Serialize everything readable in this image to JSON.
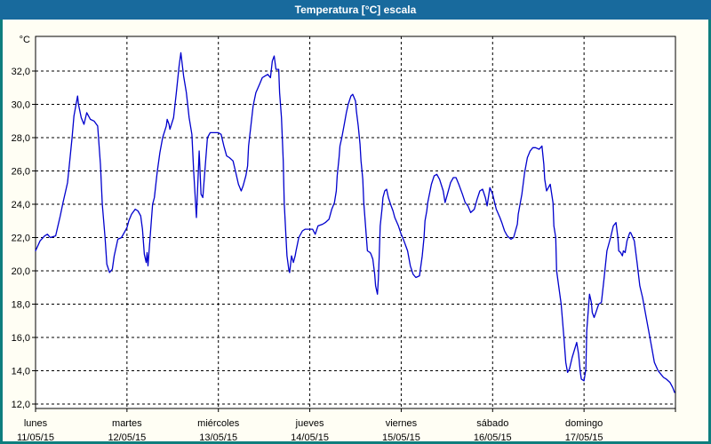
{
  "window": {
    "title": "Temperatura [°C] escala"
  },
  "colors": {
    "title_bar": "#186a9d",
    "window_border": "#0e7e7e",
    "panel_background": "#fffef4",
    "plot_background": "#ffffff",
    "grid": "#000000",
    "text": "#000000",
    "line": "#0000cd"
  },
  "chart_data": {
    "type": "line",
    "title": "Temperatura [°C] escala",
    "legend": "none",
    "grid": {
      "style": "dashed",
      "h_step_degC": 2,
      "v_step_days": 1
    },
    "y_axis": {
      "unit": "°C",
      "min": 12,
      "max": 34,
      "ticks": [
        32,
        30,
        28,
        26,
        24,
        22,
        20,
        18,
        16,
        14,
        12
      ],
      "tick_labels": [
        "32,0",
        "30,0",
        "28,0",
        "26,0",
        "24,0",
        "22,0",
        "20,0",
        "18,0",
        "16,0",
        "14,0",
        "12,0"
      ]
    },
    "x_axis": {
      "range_days": 7,
      "day_labels": [
        {
          "name": "lunes",
          "date": "11/05/15"
        },
        {
          "name": "martes",
          "date": "12/05/15"
        },
        {
          "name": "miércoles",
          "date": "13/05/15"
        },
        {
          "name": "jueves",
          "date": "14/05/15"
        },
        {
          "name": "viernes",
          "date": "15/05/15"
        },
        {
          "name": "sábado",
          "date": "16/05/15"
        },
        {
          "name": "domingo",
          "date": "17/05/15"
        }
      ]
    },
    "series": [
      {
        "name": "Temperatura [°C]",
        "color": "#0000cd",
        "points": [
          [
            0.0,
            21.2
          ],
          [
            0.05,
            21.8
          ],
          [
            0.1,
            22.1
          ],
          [
            0.13,
            22.2
          ],
          [
            0.16,
            22.0
          ],
          [
            0.22,
            22.1
          ],
          [
            0.27,
            23.3
          ],
          [
            0.3,
            24.1
          ],
          [
            0.33,
            24.8
          ],
          [
            0.35,
            25.3
          ],
          [
            0.37,
            26.4
          ],
          [
            0.4,
            28.0
          ],
          [
            0.42,
            29.3
          ],
          [
            0.46,
            30.5
          ],
          [
            0.47,
            30.0
          ],
          [
            0.5,
            29.2
          ],
          [
            0.53,
            28.8
          ],
          [
            0.56,
            29.5
          ],
          [
            0.6,
            29.1
          ],
          [
            0.64,
            29.0
          ],
          [
            0.68,
            28.7
          ],
          [
            0.71,
            26.4
          ],
          [
            0.73,
            24.0
          ],
          [
            0.76,
            22.0
          ],
          [
            0.78,
            20.4
          ],
          [
            0.81,
            19.9
          ],
          [
            0.84,
            20.1
          ],
          [
            0.86,
            20.9
          ],
          [
            0.9,
            21.9
          ],
          [
            0.94,
            22.0
          ],
          [
            0.97,
            22.3
          ],
          [
            1.0,
            22.6
          ],
          [
            1.02,
            23.0
          ],
          [
            1.05,
            23.4
          ],
          [
            1.09,
            23.7
          ],
          [
            1.12,
            23.6
          ],
          [
            1.15,
            23.3
          ],
          [
            1.17,
            22.5
          ],
          [
            1.19,
            21.0
          ],
          [
            1.21,
            20.5
          ],
          [
            1.22,
            21.1
          ],
          [
            1.23,
            20.3
          ],
          [
            1.25,
            21.8
          ],
          [
            1.28,
            24.0
          ],
          [
            1.3,
            24.4
          ],
          [
            1.33,
            25.9
          ],
          [
            1.36,
            27.1
          ],
          [
            1.39,
            28.0
          ],
          [
            1.43,
            28.7
          ],
          [
            1.44,
            29.1
          ],
          [
            1.46,
            28.8
          ],
          [
            1.47,
            28.5
          ],
          [
            1.51,
            29.2
          ],
          [
            1.54,
            30.7
          ],
          [
            1.57,
            32.3
          ],
          [
            1.59,
            33.1
          ],
          [
            1.62,
            31.7
          ],
          [
            1.65,
            30.7
          ],
          [
            1.68,
            29.2
          ],
          [
            1.71,
            28.2
          ],
          [
            1.73,
            26.0
          ],
          [
            1.76,
            23.2
          ],
          [
            1.79,
            27.2
          ],
          [
            1.81,
            24.6
          ],
          [
            1.83,
            24.4
          ],
          [
            1.88,
            28.0
          ],
          [
            1.91,
            28.3
          ],
          [
            1.94,
            28.3
          ],
          [
            2.0,
            28.3
          ],
          [
            2.03,
            28.2
          ],
          [
            2.06,
            27.5
          ],
          [
            2.09,
            26.9
          ],
          [
            2.12,
            26.8
          ],
          [
            2.16,
            26.6
          ],
          [
            2.19,
            25.9
          ],
          [
            2.22,
            25.2
          ],
          [
            2.25,
            24.8
          ],
          [
            2.27,
            25.1
          ],
          [
            2.3,
            25.7
          ],
          [
            2.32,
            26.3
          ],
          [
            2.33,
            27.5
          ],
          [
            2.36,
            28.9
          ],
          [
            2.38,
            29.9
          ],
          [
            2.41,
            30.7
          ],
          [
            2.45,
            31.2
          ],
          [
            2.48,
            31.6
          ],
          [
            2.51,
            31.7
          ],
          [
            2.54,
            31.8
          ],
          [
            2.57,
            31.6
          ],
          [
            2.59,
            32.6
          ],
          [
            2.61,
            32.9
          ],
          [
            2.63,
            32.1
          ],
          [
            2.66,
            32.1
          ],
          [
            2.67,
            30.7
          ],
          [
            2.69,
            29.2
          ],
          [
            2.71,
            26.6
          ],
          [
            2.72,
            24.1
          ],
          [
            2.74,
            22.0
          ],
          [
            2.75,
            20.9
          ],
          [
            2.77,
            20.1
          ],
          [
            2.78,
            19.9
          ],
          [
            2.8,
            20.9
          ],
          [
            2.82,
            20.5
          ],
          [
            2.84,
            20.9
          ],
          [
            2.85,
            21.2
          ],
          [
            2.88,
            22.0
          ],
          [
            2.92,
            22.4
          ],
          [
            2.95,
            22.5
          ],
          [
            3.0,
            22.5
          ],
          [
            3.03,
            22.5
          ],
          [
            3.06,
            22.2
          ],
          [
            3.09,
            22.7
          ],
          [
            3.14,
            22.8
          ],
          [
            3.17,
            22.9
          ],
          [
            3.21,
            23.1
          ],
          [
            3.24,
            23.7
          ],
          [
            3.27,
            24.1
          ],
          [
            3.29,
            24.8
          ],
          [
            3.3,
            25.7
          ],
          [
            3.32,
            26.8
          ],
          [
            3.33,
            27.5
          ],
          [
            3.35,
            28.0
          ],
          [
            3.38,
            28.9
          ],
          [
            3.4,
            29.5
          ],
          [
            3.42,
            30.0
          ],
          [
            3.45,
            30.5
          ],
          [
            3.47,
            30.6
          ],
          [
            3.5,
            30.2
          ],
          [
            3.51,
            29.6
          ],
          [
            3.53,
            28.7
          ],
          [
            3.55,
            27.6
          ],
          [
            3.56,
            26.6
          ],
          [
            3.58,
            25.5
          ],
          [
            3.59,
            24.1
          ],
          [
            3.61,
            22.7
          ],
          [
            3.63,
            21.2
          ],
          [
            3.66,
            21.1
          ],
          [
            3.67,
            21.0
          ],
          [
            3.69,
            20.7
          ],
          [
            3.71,
            19.8
          ],
          [
            3.72,
            19.1
          ],
          [
            3.74,
            18.6
          ],
          [
            3.75,
            19.5
          ],
          [
            3.76,
            20.9
          ],
          [
            3.77,
            22.7
          ],
          [
            3.79,
            23.7
          ],
          [
            3.8,
            24.4
          ],
          [
            3.82,
            24.8
          ],
          [
            3.84,
            24.9
          ],
          [
            3.86,
            24.4
          ],
          [
            3.89,
            23.9
          ],
          [
            3.91,
            23.6
          ],
          [
            3.93,
            23.2
          ],
          [
            3.97,
            22.7
          ],
          [
            4.0,
            22.2
          ],
          [
            4.03,
            21.8
          ],
          [
            4.07,
            21.2
          ],
          [
            4.1,
            20.3
          ],
          [
            4.13,
            19.8
          ],
          [
            4.16,
            19.6
          ],
          [
            4.2,
            19.7
          ],
          [
            4.23,
            20.9
          ],
          [
            4.25,
            22.0
          ],
          [
            4.26,
            23.0
          ],
          [
            4.28,
            23.6
          ],
          [
            4.29,
            24.1
          ],
          [
            4.33,
            25.2
          ],
          [
            4.36,
            25.7
          ],
          [
            4.39,
            25.8
          ],
          [
            4.42,
            25.5
          ],
          [
            4.46,
            24.8
          ],
          [
            4.48,
            24.1
          ],
          [
            4.5,
            24.5
          ],
          [
            4.54,
            25.3
          ],
          [
            4.57,
            25.6
          ],
          [
            4.6,
            25.6
          ],
          [
            4.63,
            25.2
          ],
          [
            4.67,
            24.6
          ],
          [
            4.7,
            24.1
          ],
          [
            4.73,
            23.9
          ],
          [
            4.76,
            23.5
          ],
          [
            4.8,
            23.7
          ],
          [
            4.83,
            24.3
          ],
          [
            4.86,
            24.8
          ],
          [
            4.89,
            24.9
          ],
          [
            4.92,
            24.4
          ],
          [
            4.94,
            23.9
          ],
          [
            4.97,
            25.0
          ],
          [
            5.0,
            24.6
          ],
          [
            5.04,
            23.7
          ],
          [
            5.08,
            23.2
          ],
          [
            5.1,
            22.9
          ],
          [
            5.13,
            22.4
          ],
          [
            5.16,
            22.1
          ],
          [
            5.2,
            21.9
          ],
          [
            5.23,
            22.0
          ],
          [
            5.27,
            22.8
          ],
          [
            5.28,
            23.4
          ],
          [
            5.32,
            24.6
          ],
          [
            5.35,
            25.9
          ],
          [
            5.38,
            26.8
          ],
          [
            5.41,
            27.2
          ],
          [
            5.44,
            27.4
          ],
          [
            5.47,
            27.4
          ],
          [
            5.51,
            27.3
          ],
          [
            5.54,
            27.5
          ],
          [
            5.56,
            26.4
          ],
          [
            5.57,
            25.5
          ],
          [
            5.59,
            24.8
          ],
          [
            5.61,
            25.0
          ],
          [
            5.63,
            25.2
          ],
          [
            5.66,
            24.1
          ],
          [
            5.67,
            22.7
          ],
          [
            5.69,
            22.0
          ],
          [
            5.7,
            20.0
          ],
          [
            5.75,
            18.0
          ],
          [
            5.78,
            16.0
          ],
          [
            5.8,
            14.5
          ],
          [
            5.82,
            13.9
          ],
          [
            5.84,
            14.1
          ],
          [
            5.87,
            14.8
          ],
          [
            5.92,
            15.7
          ],
          [
            5.94,
            15.0
          ],
          [
            5.96,
            13.9
          ],
          [
            5.97,
            13.5
          ],
          [
            6.0,
            13.4
          ],
          [
            6.02,
            14.1
          ],
          [
            6.03,
            16.4
          ],
          [
            6.05,
            17.9
          ],
          [
            6.06,
            18.6
          ],
          [
            6.08,
            18.1
          ],
          [
            6.09,
            17.5
          ],
          [
            6.11,
            17.2
          ],
          [
            6.13,
            17.5
          ],
          [
            6.16,
            18.0
          ],
          [
            6.19,
            18.1
          ],
          [
            6.22,
            19.6
          ],
          [
            6.25,
            21.2
          ],
          [
            6.29,
            22.0
          ],
          [
            6.32,
            22.7
          ],
          [
            6.35,
            22.9
          ],
          [
            6.37,
            22.0
          ],
          [
            6.38,
            21.2
          ],
          [
            6.4,
            21.1
          ],
          [
            6.42,
            20.9
          ],
          [
            6.43,
            21.2
          ],
          [
            6.45,
            21.1
          ],
          [
            6.47,
            21.8
          ],
          [
            6.5,
            22.3
          ],
          [
            6.51,
            22.3
          ],
          [
            6.55,
            21.8
          ],
          [
            6.58,
            20.5
          ],
          [
            6.61,
            19.1
          ],
          [
            6.64,
            18.4
          ],
          [
            6.68,
            17.2
          ],
          [
            6.71,
            16.3
          ],
          [
            6.74,
            15.4
          ],
          [
            6.77,
            14.5
          ],
          [
            6.81,
            14.0
          ],
          [
            6.84,
            13.8
          ],
          [
            6.87,
            13.6
          ],
          [
            6.9,
            13.5
          ],
          [
            6.94,
            13.3
          ],
          [
            6.97,
            13.0
          ],
          [
            6.99,
            12.7
          ]
        ]
      }
    ]
  }
}
